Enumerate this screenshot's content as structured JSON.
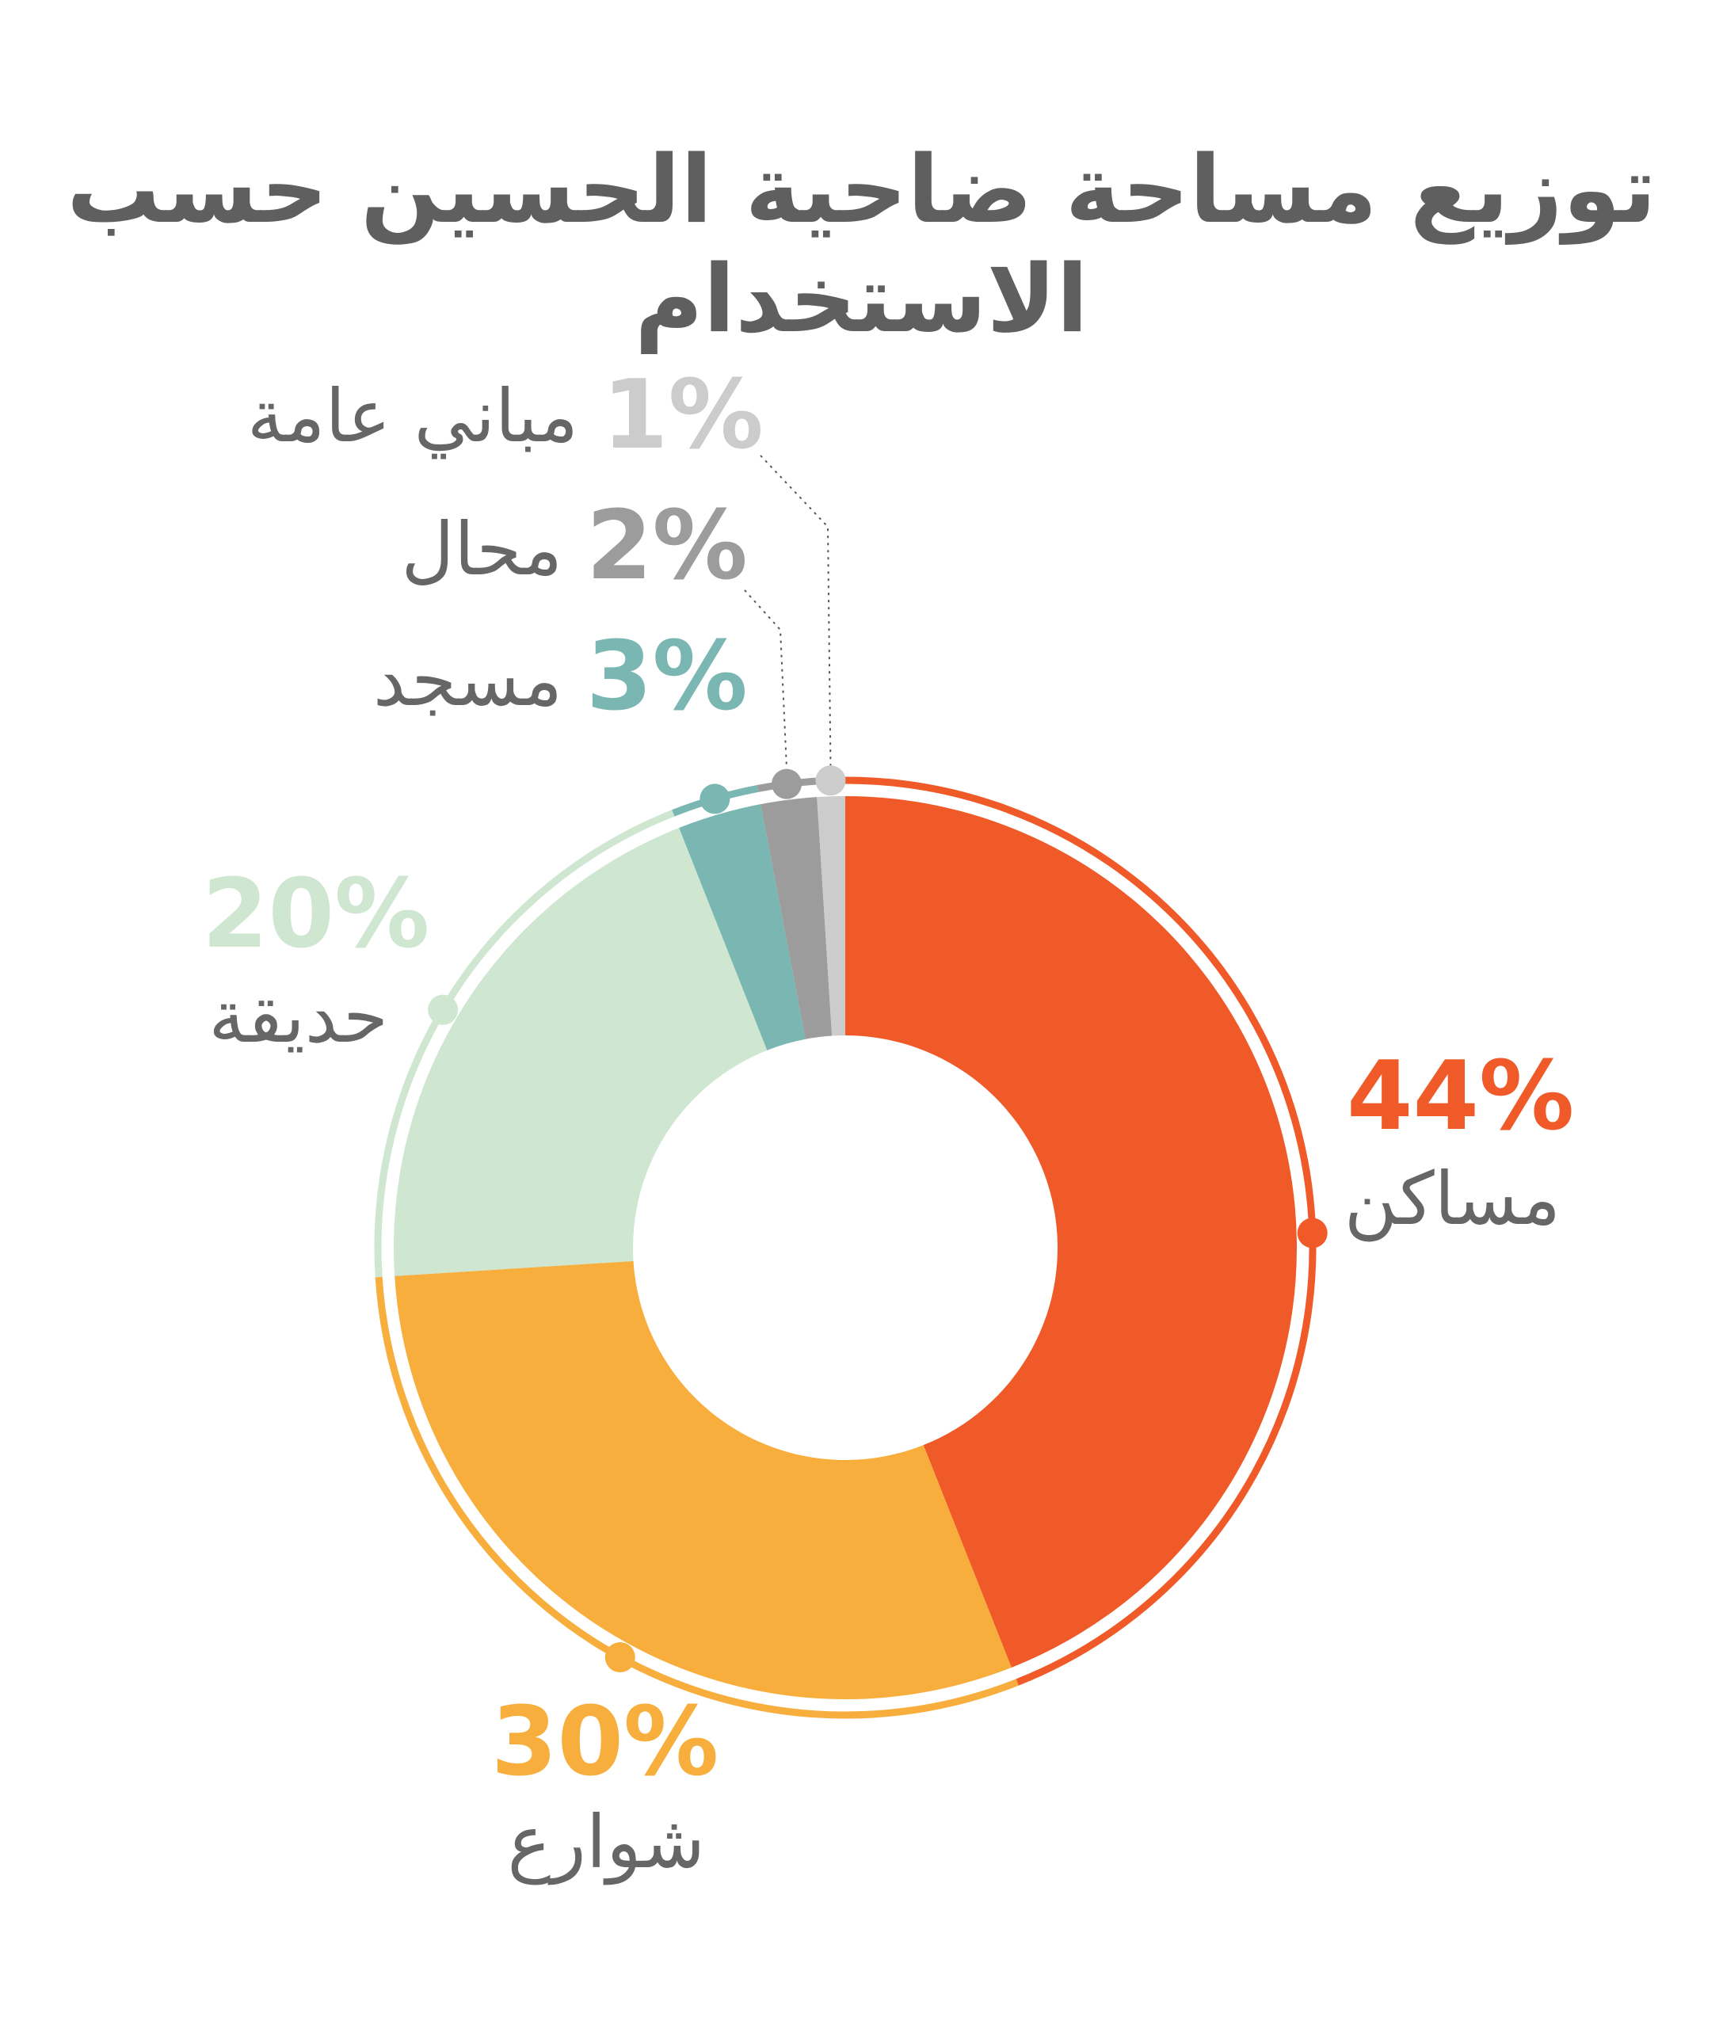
{
  "title": "توزيع مساحة ضاحية الحسين حسب الاستخدام",
  "chart_data": {
    "type": "pie",
    "title": "توزيع مساحة ضاحية الحسين حسب الاستخدام",
    "unit": "%",
    "donut": true,
    "series": [
      {
        "name": "مساكن",
        "value": 44,
        "label": "44%",
        "color": "#f05a28"
      },
      {
        "name": "شوارع",
        "value": 30,
        "label": "30%",
        "color": "#f8ae3c"
      },
      {
        "name": "حديقة",
        "value": 20,
        "label": "20%",
        "color": "#cfe6d1"
      },
      {
        "name": "مسجد",
        "value": 3,
        "label": "3%",
        "color": "#7ab7b2"
      },
      {
        "name": "محال",
        "value": 2,
        "label": "2%",
        "color": "#9c9c9c"
      },
      {
        "name": "مباني عامة",
        "value": 1,
        "label": "1%",
        "color": "#cccccc"
      }
    ]
  }
}
